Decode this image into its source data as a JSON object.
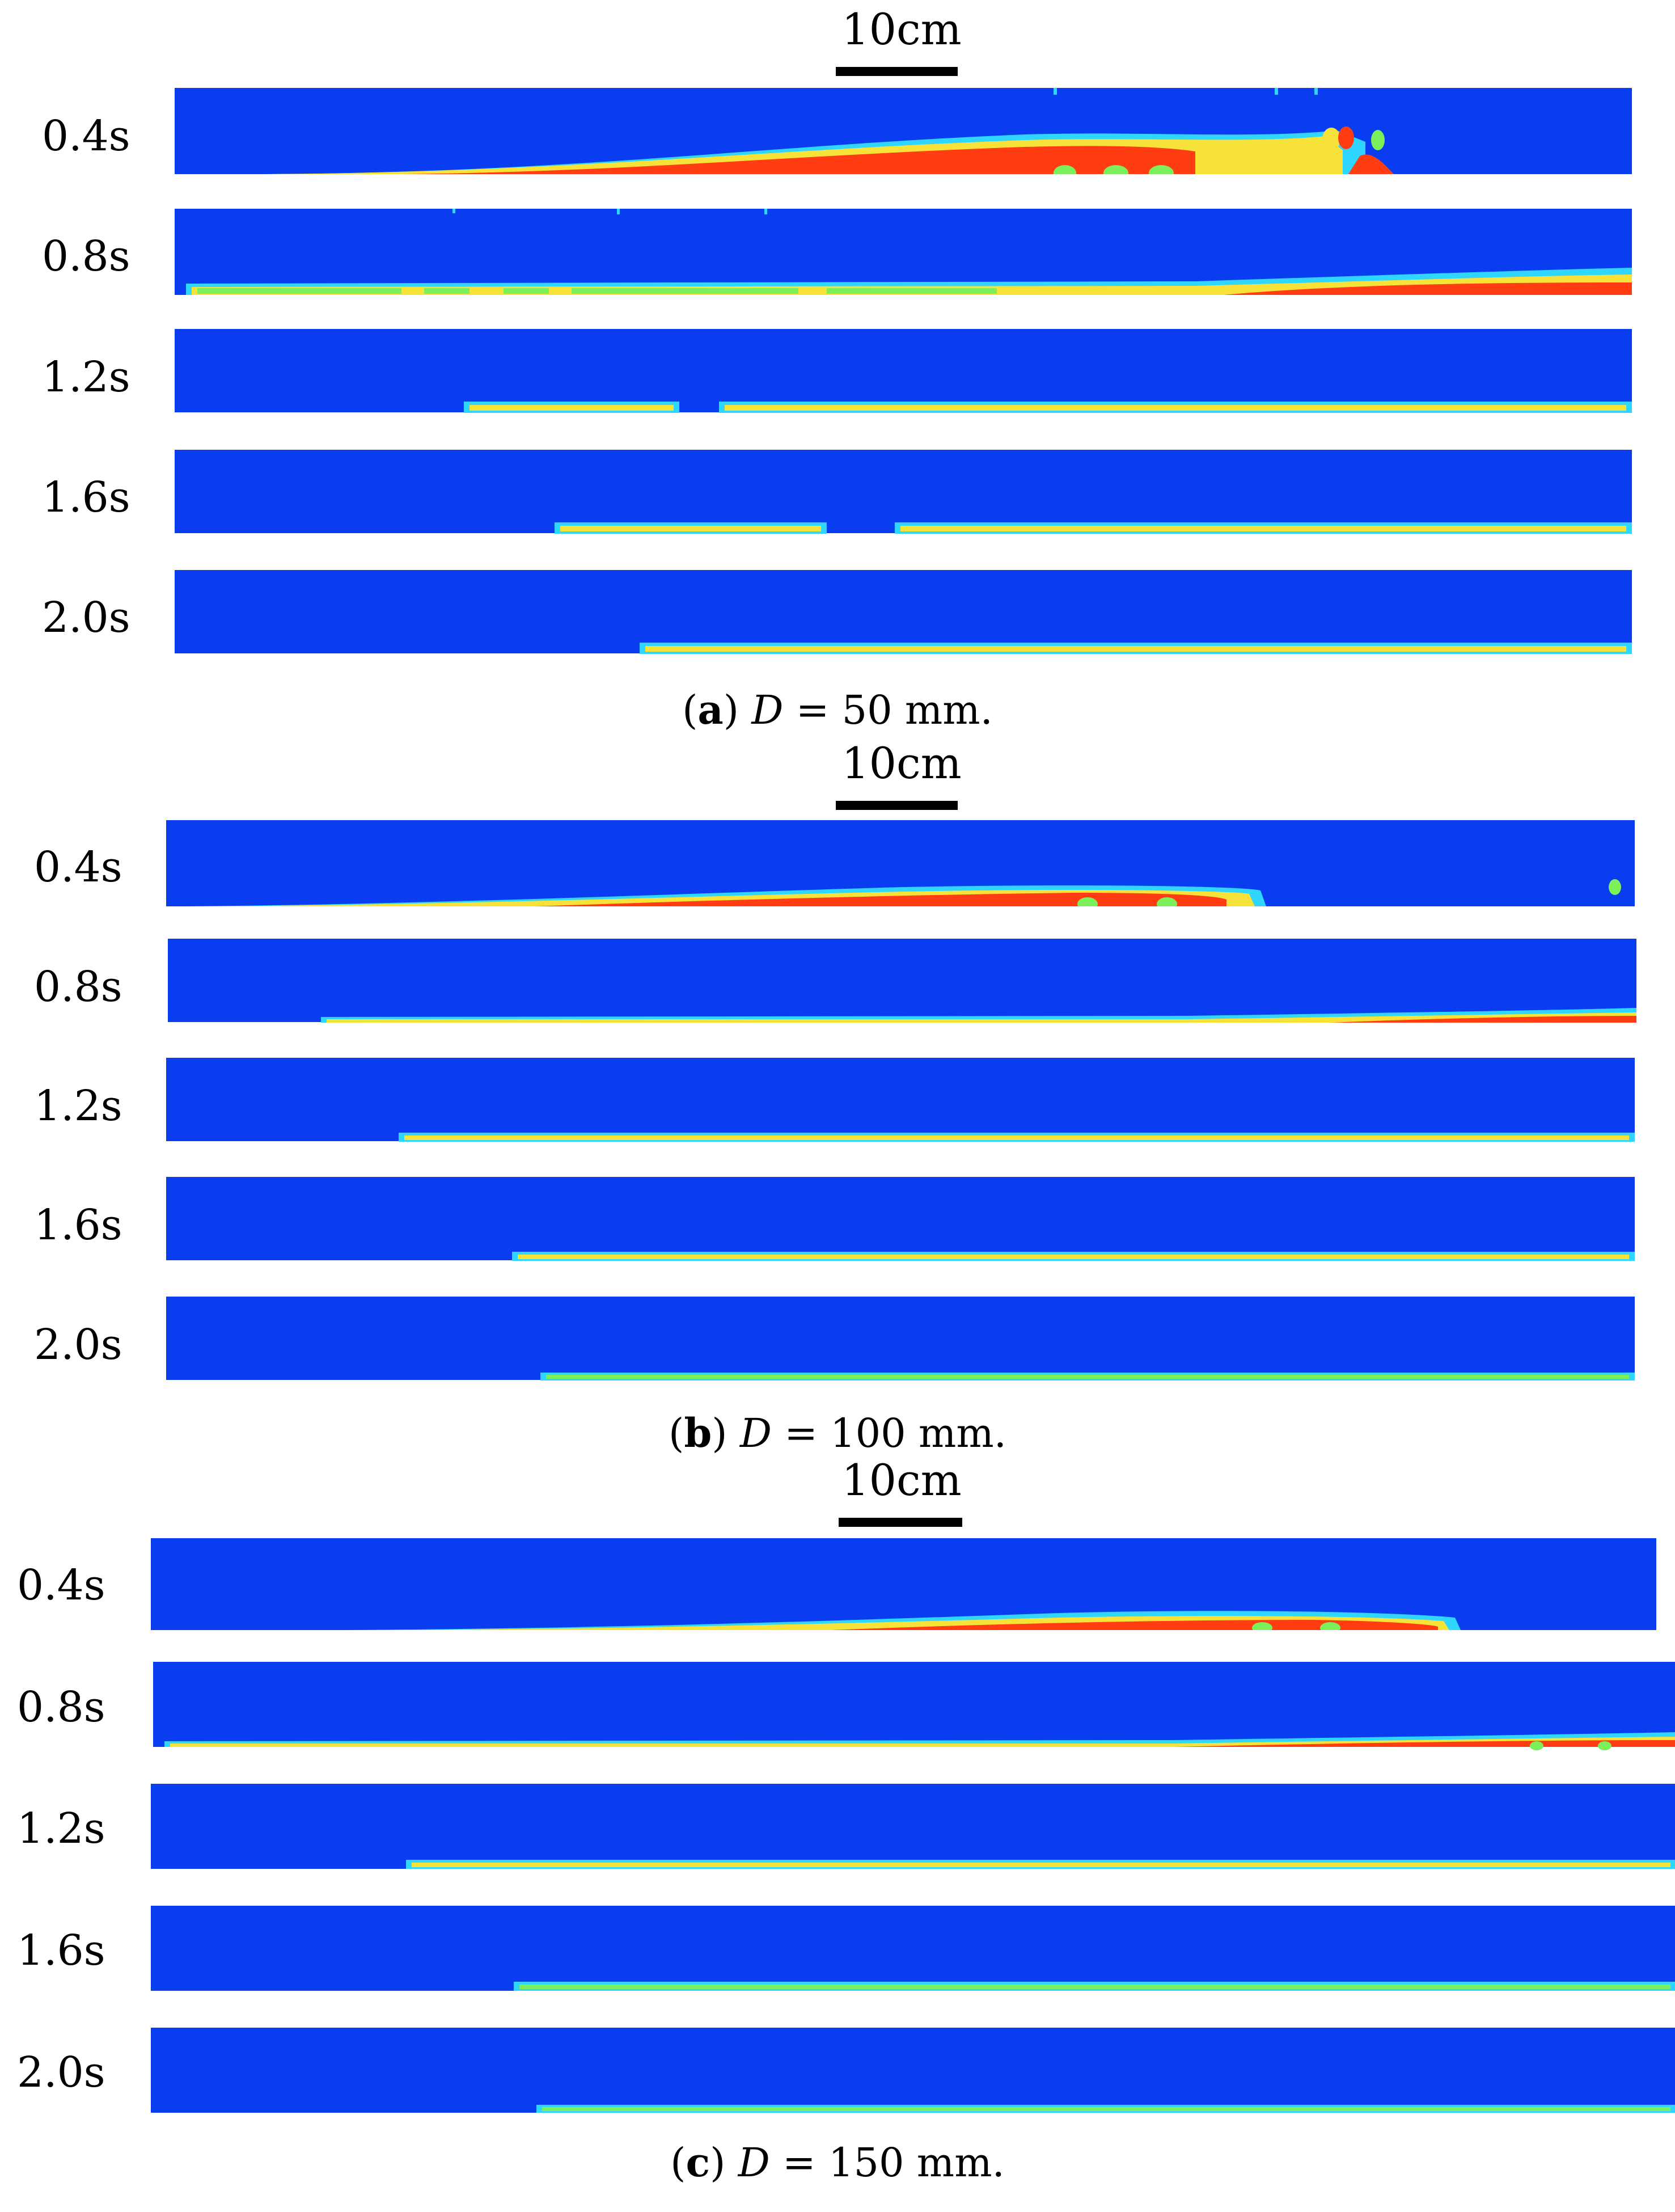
{
  "figure": {
    "colors": {
      "background_field": "#0a3cf0",
      "interface_light": "#2fd6ff",
      "interface_mid": "#7cf05a",
      "interface_warm": "#f7e23a",
      "core": "#ff3c12",
      "wall": "#ffffff"
    },
    "panels": [
      {
        "id": "a",
        "caption_letter": "a",
        "caption_var": "D",
        "caption_rest": " = 50 mm.",
        "scale_label": "10cm",
        "time_labels": [
          "0.4s",
          "0.8s",
          "1.2s",
          "1.6s",
          "2.0s"
        ]
      },
      {
        "id": "b",
        "caption_letter": "b",
        "caption_var": "D",
        "caption_rest": " = 100 mm.",
        "scale_label": "10cm",
        "time_labels": [
          "0.4s",
          "0.8s",
          "1.2s",
          "1.6s",
          "2.0s"
        ]
      },
      {
        "id": "c",
        "caption_letter": "c",
        "caption_var": "D",
        "caption_rest": " = 150 mm.",
        "scale_label": "10cm",
        "time_labels": [
          "0.4s",
          "0.8s",
          "1.2s",
          "1.6s",
          "2.0s"
        ]
      }
    ]
  }
}
